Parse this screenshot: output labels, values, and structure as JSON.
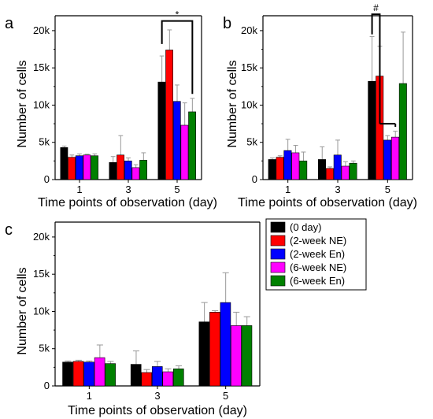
{
  "colors": {
    "0 day": "#000000",
    "2-week NE": "#ff0000",
    "2-week En": "#0000ff",
    "6-week NE": "#ff00ff",
    "6-week En": "#008000",
    "error_bar": "#999999"
  },
  "legend": {
    "placement": "panel-c-right",
    "entries": [
      "(0 day)",
      "(2-week NE)",
      "(2-week En)",
      "(6-week NE)",
      "(6-week En)"
    ]
  },
  "chart_data": [
    {
      "type": "bar",
      "panel": "a",
      "categories": [
        "1",
        "3",
        "5"
      ],
      "xlabel": "Time points of observation (day)",
      "ylabel": "Number of cells",
      "ylim": [
        0,
        22000
      ],
      "yticks": [
        "0",
        "5k",
        "10k",
        "15k",
        "20k"
      ],
      "annotation": "*",
      "series": [
        {
          "name": "(0 day)",
          "values": [
            4300,
            2300,
            13100
          ],
          "errors": [
            200,
            800,
            3500
          ]
        },
        {
          "name": "(2-week NE)",
          "values": [
            3000,
            3300,
            17400
          ],
          "errors": [
            300,
            2600,
            2700
          ]
        },
        {
          "name": "(2-week En)",
          "values": [
            3200,
            2500,
            10500
          ],
          "errors": [
            250,
            400,
            2200
          ]
        },
        {
          "name": "(6-week NE)",
          "values": [
            3300,
            1600,
            7300
          ],
          "errors": [
            100,
            400,
            3000
          ]
        },
        {
          "name": "(6-week En)",
          "values": [
            3200,
            2600,
            9100
          ],
          "errors": [
            250,
            1000,
            1800
          ]
        }
      ]
    },
    {
      "type": "bar",
      "panel": "b",
      "categories": [
        "1",
        "3",
        "5"
      ],
      "xlabel": "Time points of observation (day)",
      "ylabel": "Number of cells",
      "ylim": [
        0,
        22000
      ],
      "yticks": [
        "0",
        "5k",
        "10k",
        "15k",
        "20k"
      ],
      "annotation": "#",
      "series": [
        {
          "name": "(0 day)",
          "values": [
            2700,
            2700,
            13200
          ],
          "errors": [
            200,
            1700,
            6000
          ]
        },
        {
          "name": "(2-week NE)",
          "values": [
            3000,
            1500,
            13900
          ],
          "errors": [
            200,
            200,
            4000
          ]
        },
        {
          "name": "(2-week En)",
          "values": [
            3900,
            3300,
            5300
          ],
          "errors": [
            1500,
            2000,
            600
          ]
        },
        {
          "name": "(6-week NE)",
          "values": [
            3600,
            1800,
            5700
          ],
          "errors": [
            1000,
            600,
            800
          ]
        },
        {
          "name": "(6-week En)",
          "values": [
            2500,
            2200,
            12900
          ],
          "errors": [
            1200,
            300,
            6900
          ]
        }
      ]
    },
    {
      "type": "bar",
      "panel": "c",
      "categories": [
        "1",
        "3",
        "5"
      ],
      "xlabel": "Time points of observation (day)",
      "ylabel": "Number of cells",
      "ylim": [
        0,
        22000
      ],
      "yticks": [
        "0",
        "5k",
        "10k",
        "15k",
        "20k"
      ],
      "annotation": "",
      "series": [
        {
          "name": "(0 day)",
          "values": [
            3200,
            2900,
            8600
          ],
          "errors": [
            150,
            1800,
            2600
          ]
        },
        {
          "name": "(2-week NE)",
          "values": [
            3300,
            1800,
            9900
          ],
          "errors": [
            150,
            400,
            200
          ]
        },
        {
          "name": "(2-week En)",
          "values": [
            3200,
            2600,
            11200
          ],
          "errors": [
            150,
            700,
            4000
          ]
        },
        {
          "name": "(6-week NE)",
          "values": [
            3800,
            1900,
            8100
          ],
          "errors": [
            1700,
            400,
            1800
          ]
        },
        {
          "name": "(6-week En)",
          "values": [
            3000,
            2300,
            8100
          ],
          "errors": [
            300,
            400,
            1200
          ]
        }
      ]
    }
  ]
}
